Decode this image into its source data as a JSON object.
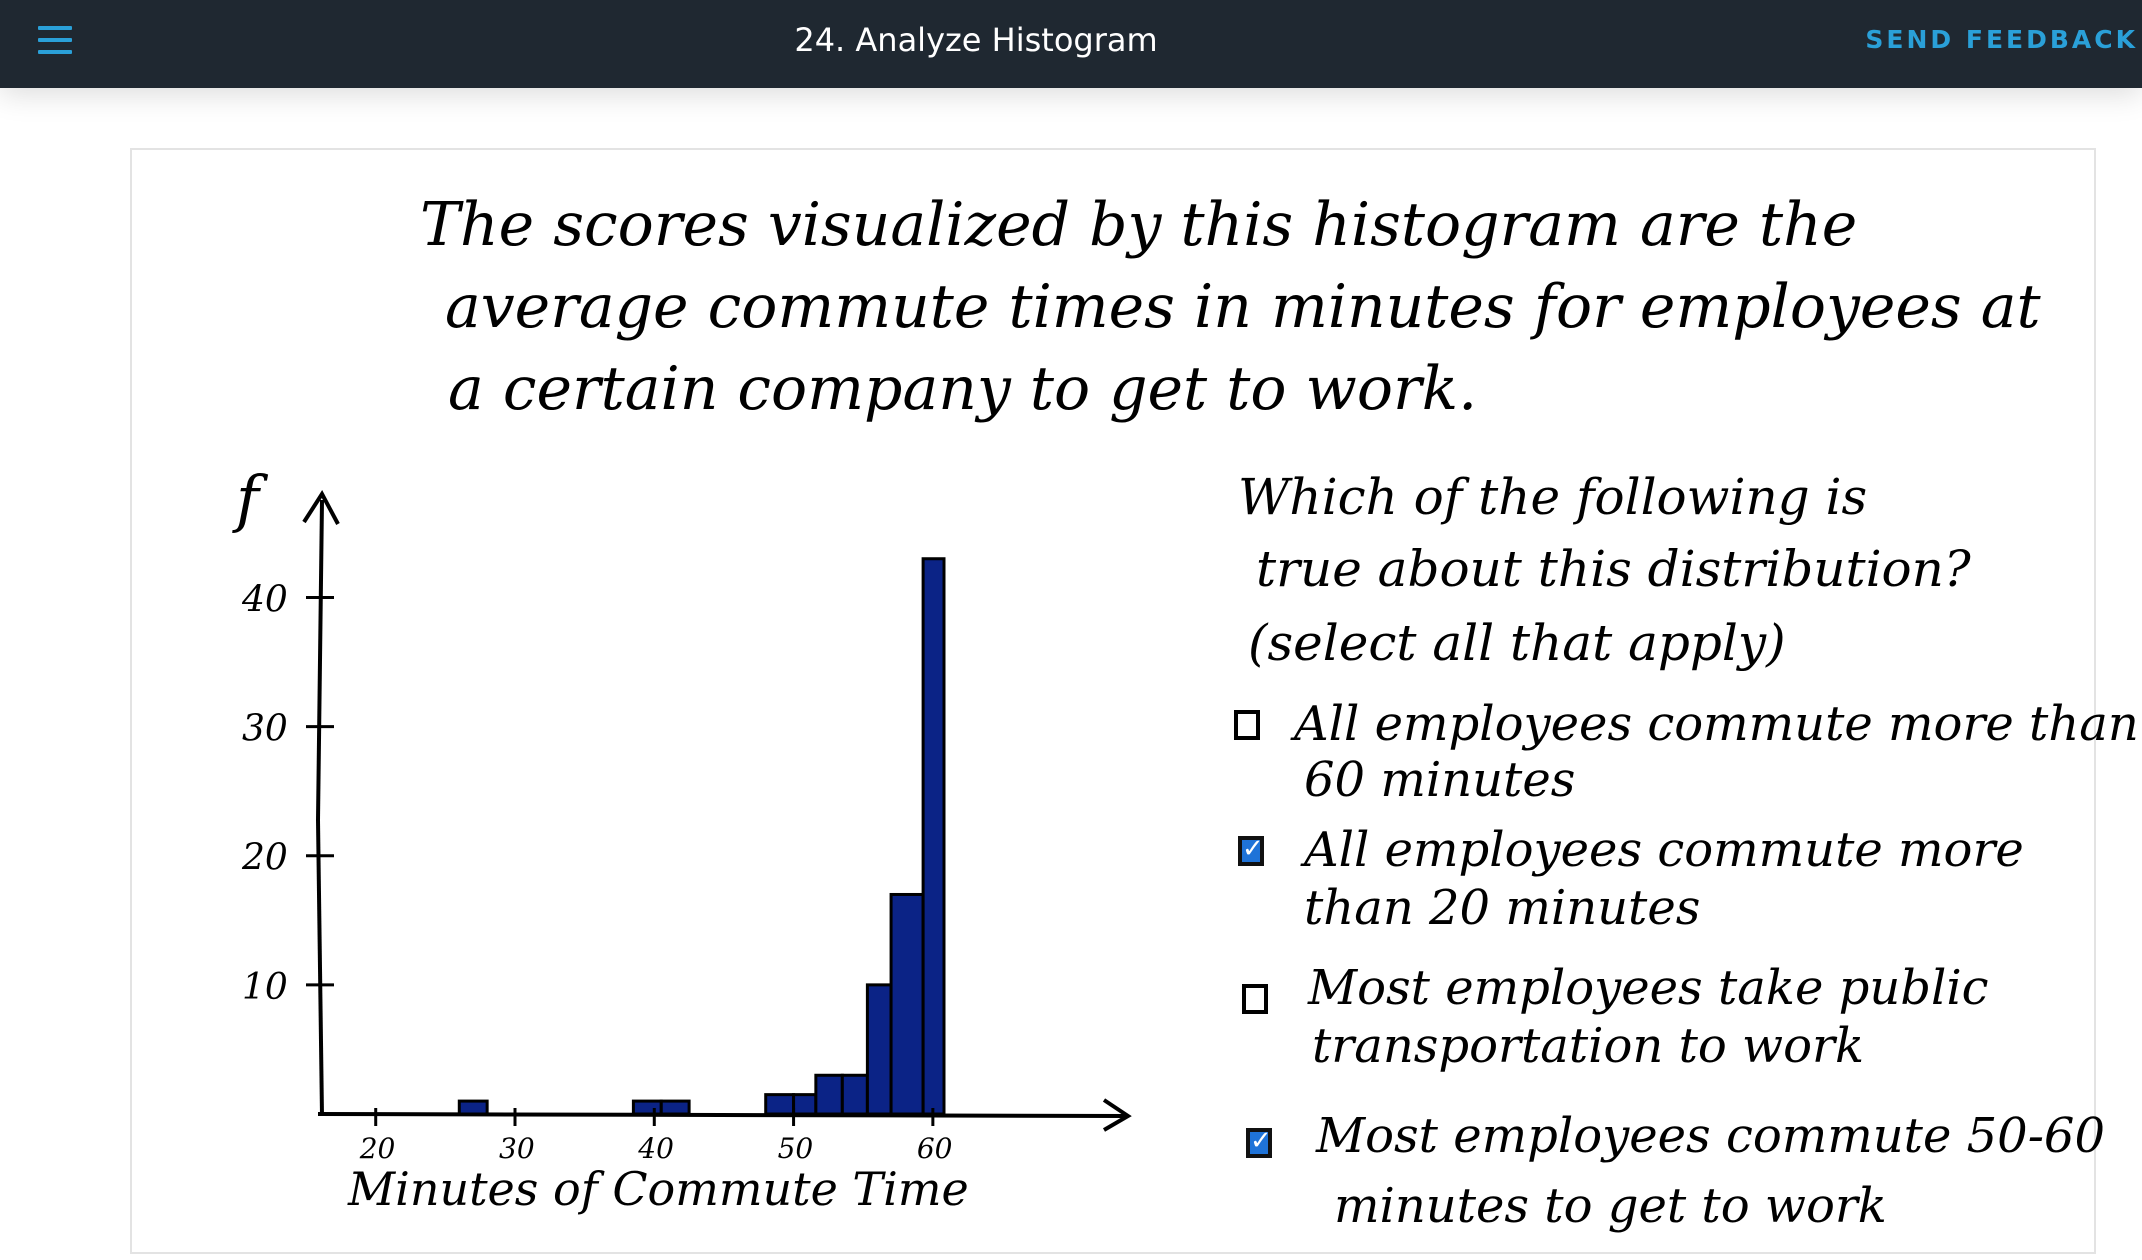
{
  "header": {
    "title": "24. Analyze Histogram",
    "feedback_label": "SEND FEEDBACK",
    "accent_color": "#2aa0d8",
    "background_color": "#1f2831",
    "menu_icon": "hamburger-menu-icon"
  },
  "prompt": {
    "lines": [
      "The scores visualized by this histogram are the",
      "average commute times in minutes for employees at",
      "a certain company to get to work."
    ]
  },
  "question": {
    "lines": [
      "Which of the following is",
      "true about this distribution?",
      "(select all that apply)"
    ],
    "options": [
      {
        "lines": [
          "All employees commute more than",
          "60 minutes"
        ],
        "checked": false
      },
      {
        "lines": [
          "All employees commute more",
          "than 20 minutes"
        ],
        "checked": true
      },
      {
        "lines": [
          "Most employees take public",
          "transportation to work"
        ],
        "checked": false
      },
      {
        "lines": [
          "Most employees commute 50-60",
          "minutes to get to work"
        ],
        "checked": true
      }
    ]
  },
  "chart_data": {
    "type": "bar",
    "ylabel": "f",
    "xlabel": "Minutes of Commute Time",
    "x_ticks": [
      "20",
      "30",
      "40",
      "50",
      "60"
    ],
    "y_ticks": [
      "10",
      "20",
      "30",
      "40"
    ],
    "xlim": [
      16,
      72
    ],
    "ylim": [
      0,
      46
    ],
    "bar_color": "#0b2386",
    "bars": [
      {
        "start": 26,
        "end": 28,
        "value": 1
      },
      {
        "start": 38.5,
        "end": 40.5,
        "value": 1
      },
      {
        "start": 40.5,
        "end": 42.5,
        "value": 1
      },
      {
        "start": 48,
        "end": 50,
        "value": 1.5
      },
      {
        "start": 50,
        "end": 51.6,
        "value": 1.5
      },
      {
        "start": 51.6,
        "end": 53.5,
        "value": 3
      },
      {
        "start": 53.5,
        "end": 55.3,
        "value": 3
      },
      {
        "start": 55.3,
        "end": 57,
        "value": 10
      },
      {
        "start": 57,
        "end": 59.3,
        "value": 17
      },
      {
        "start": 59.3,
        "end": 60.8,
        "value": 43
      }
    ]
  }
}
